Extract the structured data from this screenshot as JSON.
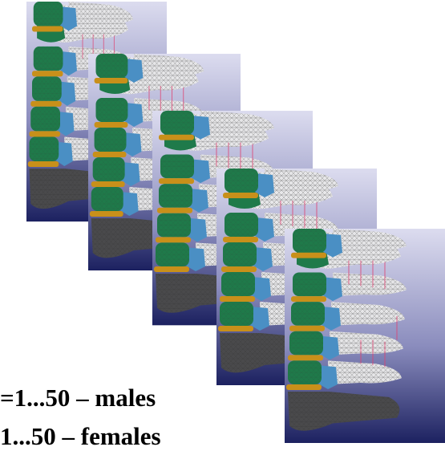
{
  "captions": [
    "=1...50 – males",
    "1...50 – females"
  ]
}
